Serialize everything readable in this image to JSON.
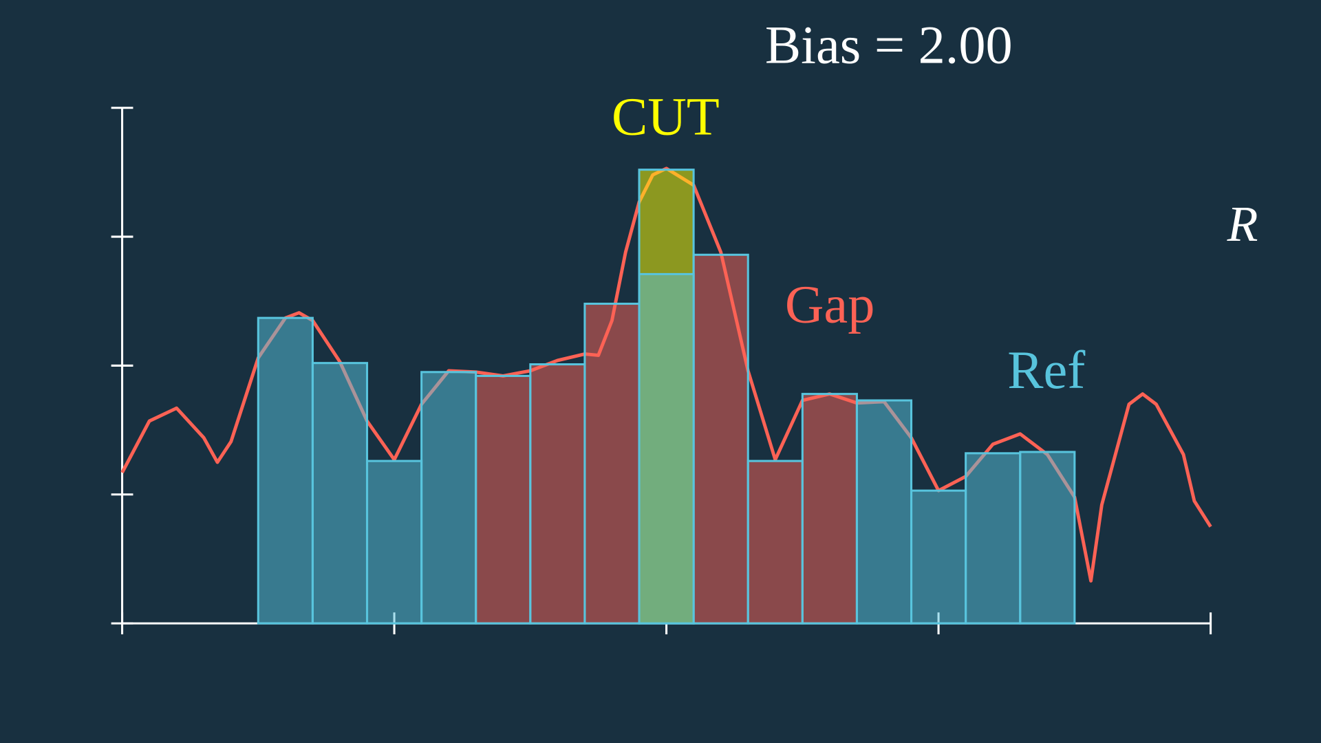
{
  "chart_data": {
    "type": "histogram",
    "title": "Bias = 2.00",
    "y_label": "R",
    "xlim": [
      0,
      4
    ],
    "ylim": [
      0,
      4
    ],
    "xticks": [
      0,
      1,
      2,
      3,
      4
    ],
    "yticks": [
      0,
      1,
      2,
      3,
      4
    ],
    "axis_color": "#ffffff",
    "bins": [
      0.5,
      0.7,
      0.9,
      1.1,
      1.3,
      1.5,
      1.7,
      1.9,
      2.1,
      2.3,
      2.5,
      2.7,
      2.9,
      3.1,
      3.3,
      3.5
    ],
    "values": [
      2.37,
      2.02,
      1.26,
      1.95,
      1.92,
      2.01,
      2.48,
      3.52,
      2.86,
      1.26,
      1.78,
      1.73,
      1.03,
      1.32,
      1.33
    ],
    "bar_colors": [
      "#58c4dd",
      "#58c4dd",
      "#58c4dd",
      "#58c4dd",
      "#fc6255",
      "#fc6255",
      "#fc6255",
      "#ffff00",
      "#fc6255",
      "#fc6255",
      "#fc6255",
      "#58c4dd",
      "#58c4dd",
      "#58c4dd",
      "#58c4dd"
    ],
    "bar_opacity": 0.5,
    "bar_stroke": "#58c4dd",
    "highlight": {
      "bin": 7,
      "level": 2.71,
      "color": "#72ad7d"
    },
    "curve": {
      "color": "#fc6255",
      "x": [
        0,
        0.1,
        0.2,
        0.3,
        0.35,
        0.4,
        0.5,
        0.6,
        0.65,
        0.7,
        0.8,
        0.9,
        1.0,
        1.1,
        1.2,
        1.3,
        1.4,
        1.5,
        1.6,
        1.7,
        1.75,
        1.8,
        1.85,
        1.9,
        1.95,
        2.0,
        2.1,
        2.2,
        2.3,
        2.4,
        2.5,
        2.6,
        2.7,
        2.8,
        2.9,
        3.0,
        3.1,
        3.2,
        3.3,
        3.4,
        3.5,
        3.56,
        3.6,
        3.7,
        3.75,
        3.8,
        3.9,
        3.94,
        4.0
      ],
      "values": [
        1.17,
        1.57,
        1.67,
        1.44,
        1.25,
        1.41,
        2.06,
        2.37,
        2.41,
        2.35,
        2.03,
        1.57,
        1.27,
        1.7,
        1.96,
        1.95,
        1.92,
        1.96,
        2.04,
        2.09,
        2.08,
        2.35,
        2.88,
        3.27,
        3.48,
        3.53,
        3.4,
        2.88,
        1.96,
        1.27,
        1.73,
        1.78,
        1.71,
        1.72,
        1.44,
        1.03,
        1.14,
        1.39,
        1.47,
        1.31,
        0.98,
        0.33,
        0.92,
        1.7,
        1.78,
        1.7,
        1.31,
        0.95,
        0.75
      ]
    },
    "annotations": [
      {
        "text": "CUT",
        "color": "#ffff00"
      },
      {
        "text": "Gap",
        "color": "#fc6255"
      },
      {
        "text": "Ref",
        "color": "#58c4dd"
      }
    ]
  }
}
